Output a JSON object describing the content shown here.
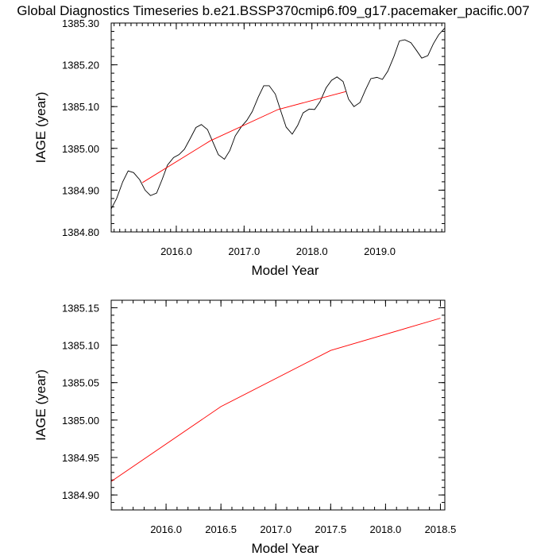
{
  "title": "Global Diagnostics Timeseries b.e21.BSSP370cmip6.f09_g17.pacemaker_pacific.007",
  "colors": {
    "monthly": "#000000",
    "annual": "#ff0000",
    "frame": "#000000"
  },
  "chart_data": [
    {
      "type": "line",
      "xlabel": "Model Year",
      "ylabel": "IAGE (year)",
      "xlim": [
        2015.04,
        2019.96
      ],
      "ylim": [
        1384.8,
        1385.3
      ],
      "x_major_ticks": [
        2016.0,
        2017.0,
        2018.0,
        2019.0
      ],
      "x_tick_labels": [
        "2016.0",
        "2017.0",
        "2018.0",
        "2019.0"
      ],
      "y_major_ticks": [
        1384.8,
        1384.9,
        1385.0,
        1385.1,
        1385.2,
        1385.3
      ],
      "y_tick_labels": [
        "1384.80",
        "1384.90",
        "1385.00",
        "1385.10",
        "1385.20",
        "1385.30"
      ],
      "grid": false,
      "series": [
        {
          "style": "monthly",
          "x": [
            2015.04,
            2015.12,
            2015.21,
            2015.29,
            2015.37,
            2015.46,
            2015.54,
            2015.62,
            2015.71,
            2015.79,
            2015.87,
            2015.96,
            2016.04,
            2016.12,
            2016.21,
            2016.29,
            2016.37,
            2016.46,
            2016.54,
            2016.62,
            2016.71,
            2016.79,
            2016.87,
            2016.96,
            2017.04,
            2017.12,
            2017.21,
            2017.29,
            2017.37,
            2017.46,
            2017.54,
            2017.62,
            2017.71,
            2017.79,
            2017.87,
            2017.96,
            2018.04,
            2018.12,
            2018.21,
            2018.29,
            2018.37,
            2018.46,
            2018.54,
            2018.62,
            2018.71,
            2018.79,
            2018.87,
            2018.96,
            2019.04,
            2019.12,
            2019.21,
            2019.29,
            2019.37,
            2019.46,
            2019.54,
            2019.62,
            2019.71,
            2019.79,
            2019.87,
            2019.96
          ],
          "y": [
            1384.855,
            1384.88,
            1384.92,
            1384.946,
            1384.942,
            1384.925,
            1384.9,
            1384.887,
            1384.893,
            1384.925,
            1384.96,
            1384.978,
            1384.985,
            1384.998,
            1385.025,
            1385.05,
            1385.057,
            1385.045,
            1385.015,
            1384.985,
            1384.974,
            1384.995,
            1385.03,
            1385.052,
            1385.067,
            1385.088,
            1385.123,
            1385.15,
            1385.15,
            1385.13,
            1385.09,
            1385.051,
            1385.034,
            1385.055,
            1385.085,
            1385.094,
            1385.093,
            1385.112,
            1385.145,
            1385.163,
            1385.171,
            1385.16,
            1385.118,
            1385.1,
            1385.11,
            1385.14,
            1385.167,
            1385.17,
            1385.165,
            1385.185,
            1385.22,
            1385.257,
            1385.26,
            1385.253,
            1385.235,
            1385.216,
            1385.222,
            1385.25,
            1385.272,
            1385.288
          ]
        },
        {
          "style": "annual",
          "x": [
            2015.5,
            2016.5,
            2017.5,
            2018.5
          ],
          "y": [
            1384.918,
            1385.018,
            1385.093,
            1385.136
          ]
        }
      ]
    },
    {
      "type": "line",
      "xlabel": "Model Year",
      "ylabel": "IAGE (year)",
      "xlim": [
        2015.5,
        2018.54
      ],
      "ylim": [
        1384.88,
        1385.16
      ],
      "x_major_ticks": [
        2016.0,
        2016.5,
        2017.0,
        2017.5,
        2018.0,
        2018.5
      ],
      "x_tick_labels": [
        "2016.0",
        "2016.5",
        "2017.0",
        "2017.5",
        "2018.0",
        "2018.5"
      ],
      "y_major_ticks": [
        1384.9,
        1384.95,
        1385.0,
        1385.05,
        1385.1,
        1385.15
      ],
      "y_tick_labels": [
        "1384.90",
        "1384.95",
        "1385.00",
        "1385.05",
        "1385.10",
        "1385.15"
      ],
      "grid": false,
      "series": [
        {
          "style": "annual",
          "x": [
            2015.5,
            2016.5,
            2017.5,
            2018.5
          ],
          "y": [
            1384.918,
            1385.018,
            1385.093,
            1385.136
          ]
        }
      ]
    }
  ]
}
